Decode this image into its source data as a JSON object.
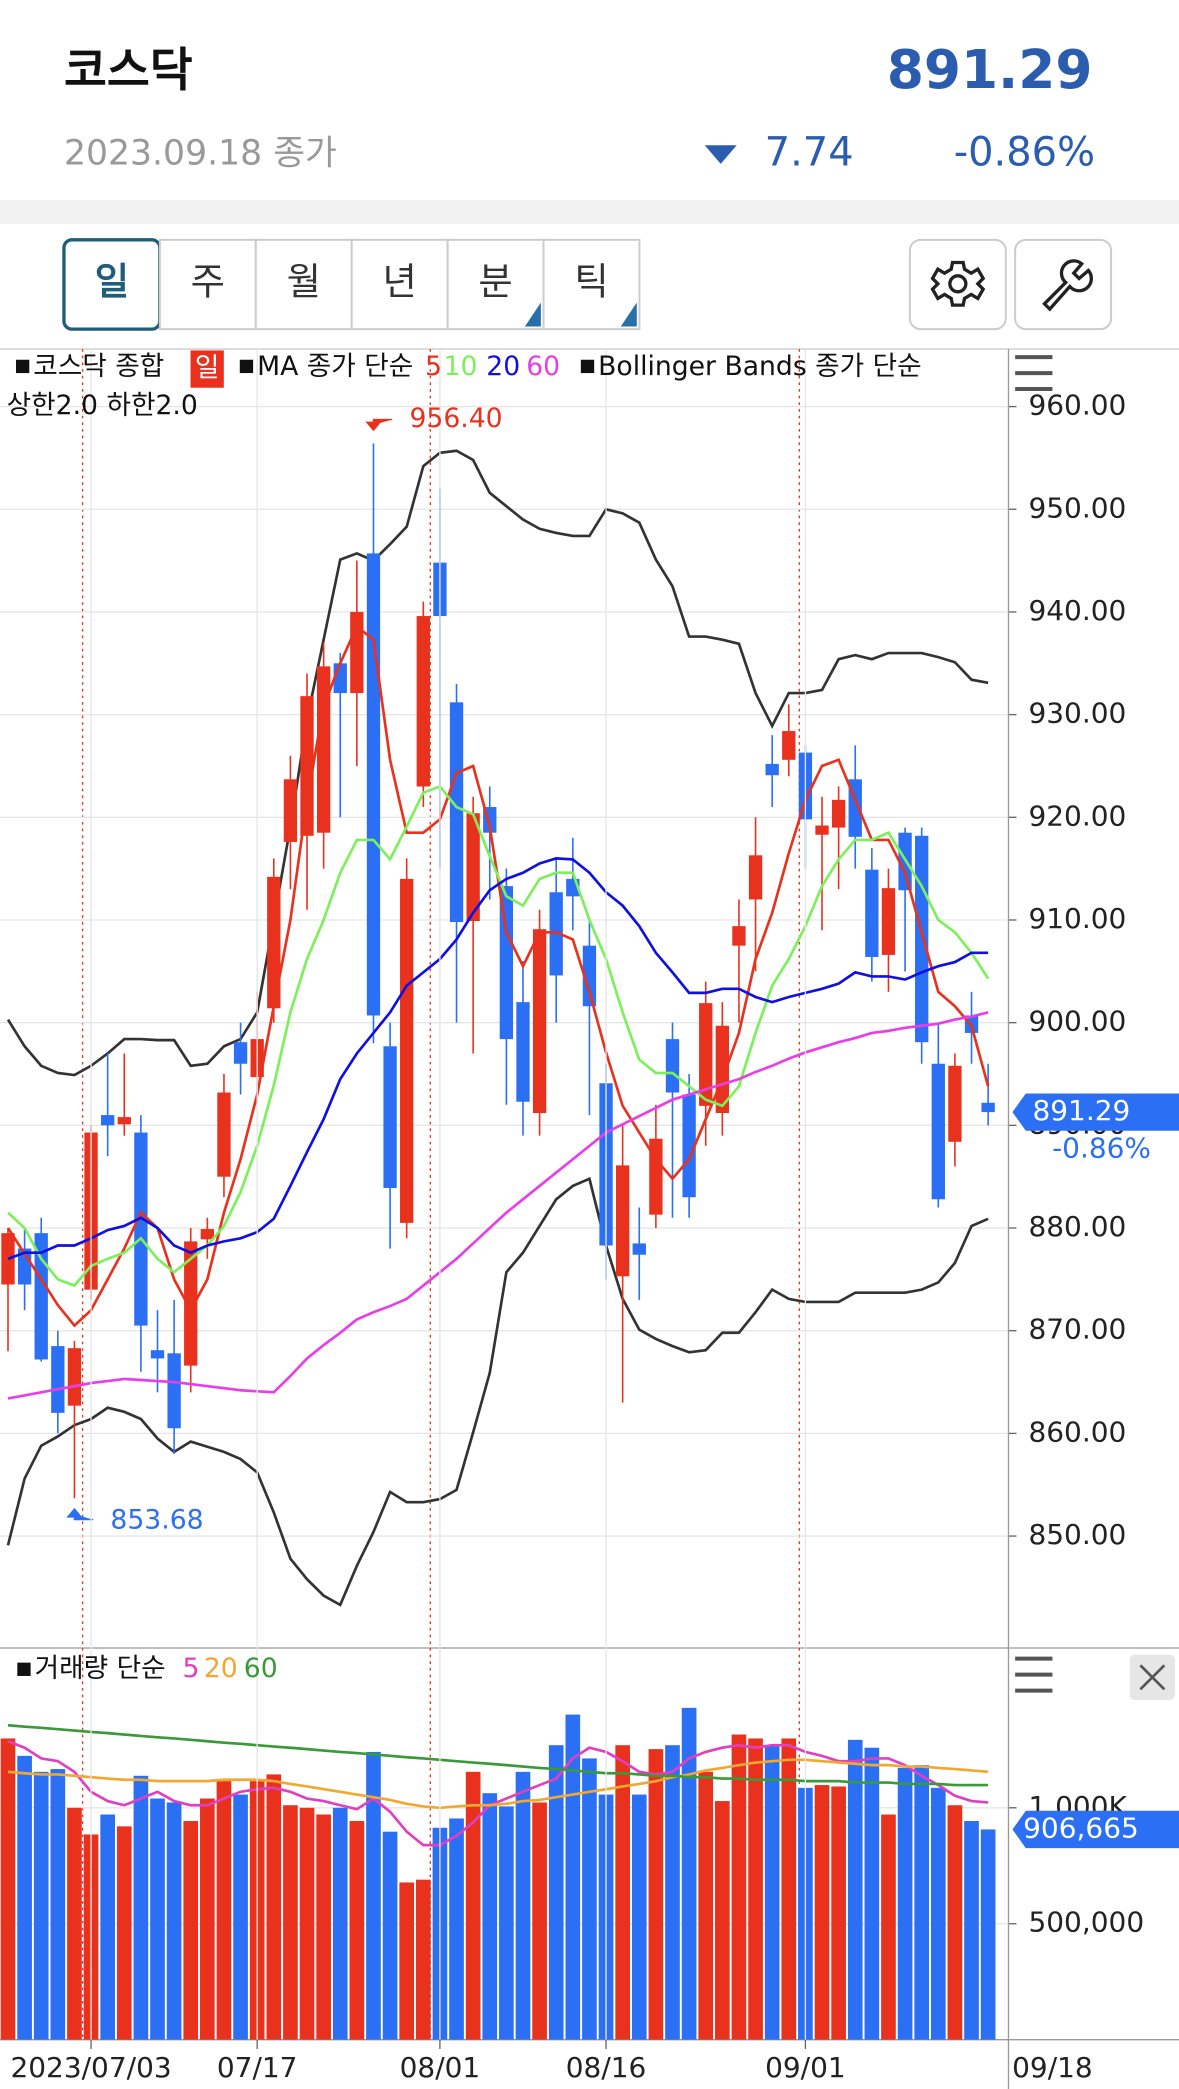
{
  "header": {
    "name": "코스닥",
    "price": "891.29",
    "date": "2023.09.18 종가",
    "change": "7.74",
    "change_pct": "-0.86%"
  },
  "tabs": [
    "일",
    "주",
    "월",
    "년",
    "분",
    "틱"
  ],
  "chart_data": [
    {
      "type": "candlestick",
      "legend": {
        "main": "코스닥 종합",
        "period": "일",
        "ma_title": "MA 종가 단순",
        "bb_title": "Bollinger Bands 종가 단순",
        "bb_params": "상한2.0 하한2.0"
      },
      "up_color": "#e8321e",
      "down_color": "#2b6ff5",
      "open": [
        874.5,
        878,
        879.5,
        868.5,
        862.7,
        874,
        891,
        890.1,
        889.3,
        868.1,
        867.8,
        866.6,
        878.9,
        885,
        898.1,
        894.7,
        901.4,
        917.6,
        918.2,
        918.5,
        935,
        932.1,
        945.7,
        897.7,
        880.5,
        923,
        944.8,
        931.2,
        909.9,
        921,
        913.3,
        902,
        891.2,
        912.7,
        914,
        907.5,
        894.1,
        875.3,
        878.5,
        881.3,
        898.4,
        893,
        891.9,
        891.2,
        907.5,
        912,
        925.2,
        925.6,
        926.3,
        918.3,
        919,
        923.7,
        914.9,
        906.6,
        918.5,
        918.2,
        896,
        888.4,
        900.7,
        892.2
      ],
      "high": [
        880,
        880,
        881,
        870,
        869,
        890,
        897,
        897,
        891,
        872,
        873,
        880,
        881,
        895,
        900,
        903,
        916,
        926,
        934,
        937,
        936,
        945,
        956.4,
        900,
        916,
        941,
        952,
        933,
        922,
        923,
        915,
        906,
        911,
        916,
        918,
        910,
        896,
        890,
        882,
        892,
        900,
        895,
        904,
        902,
        912,
        920,
        928,
        931,
        927,
        922,
        923,
        927,
        917,
        915,
        919,
        919,
        900,
        897,
        903,
        896
      ],
      "low": [
        868,
        872,
        867,
        860,
        853.68,
        873,
        887,
        889,
        866,
        864,
        858,
        864,
        877,
        883,
        893,
        893,
        900,
        913,
        911,
        915,
        920,
        925,
        898,
        878,
        879,
        921,
        915,
        900,
        897,
        912,
        892,
        889,
        889,
        900,
        909,
        891,
        875,
        863,
        873,
        880,
        881,
        881,
        888,
        889,
        900,
        905,
        921,
        924,
        915,
        909,
        913,
        915,
        904,
        903,
        905,
        896,
        882,
        886,
        896,
        890
      ],
      "close": [
        879.5,
        874.5,
        867.2,
        862,
        868.3,
        889.3,
        890,
        890.8,
        870.5,
        867.3,
        860.5,
        878.7,
        879.9,
        893.2,
        896,
        898.4,
        914.2,
        923.7,
        931.8,
        934.7,
        932.1,
        940,
        900.7,
        883.9,
        914,
        939.6,
        939.6,
        909.8,
        920.4,
        918.5,
        898.4,
        892.3,
        909.1,
        904.6,
        912.3,
        901.6,
        878.3,
        886.1,
        877.4,
        888.7,
        893.2,
        883,
        901.9,
        899.7,
        909.4,
        916.3,
        924.1,
        928.4,
        919.8,
        919.2,
        921.7,
        918.1,
        906.4,
        913.1,
        912.9,
        898.1,
        882.8,
        895.8,
        899,
        891.29
      ],
      "series": [
        {
          "name": "5",
          "color": "#e8321e",
          "values": [
            880,
            877.5,
            875,
            872.5,
            870.5,
            872,
            875,
            878,
            881.5,
            880,
            875,
            872,
            875,
            881.5,
            886.7,
            893,
            901.6,
            910,
            921.7,
            930.8,
            935,
            938.6,
            937.3,
            925.6,
            918.5,
            918.5,
            919.8,
            924.3,
            925,
            919.1,
            908.8,
            905.5,
            908.8,
            908.8,
            908.1,
            903,
            897.1,
            891.9,
            889.3,
            886.7,
            884.8,
            886.7,
            890.6,
            894.5,
            899,
            906.2,
            910.7,
            916.5,
            921.7,
            925,
            925.6,
            921.7,
            917.8,
            917.8,
            914.6,
            908.8,
            903,
            901.6,
            899.7,
            893.8
          ]
        },
        {
          "name": "10",
          "color": "#7cf05a",
          "values": [
            881.5,
            880,
            877,
            875,
            874.4,
            876.3,
            877,
            877.6,
            879,
            877,
            875.7,
            877,
            878.3,
            880.2,
            883.5,
            888,
            893.9,
            901,
            906.2,
            910,
            914.6,
            917.8,
            917.8,
            915.9,
            919.1,
            922.4,
            923,
            921,
            920.3,
            916.2,
            912.3,
            911.4,
            914,
            914.6,
            914.6,
            910,
            906.2,
            901,
            896.4,
            895.1,
            895.1,
            893.8,
            892.5,
            891.9,
            893.8,
            899,
            903.6,
            906.2,
            909.4,
            913.3,
            915.9,
            917.8,
            917.8,
            918.5,
            915.9,
            913.3,
            910,
            908.8,
            906.8,
            904.3
          ]
        },
        {
          "name": "20",
          "color": "#1010e0",
          "values": [
            877,
            877.6,
            877.6,
            878.3,
            878.3,
            879,
            879.8,
            880.2,
            881,
            880,
            878.3,
            877.6,
            878.3,
            878.7,
            879,
            879.6,
            880.9,
            884.1,
            887.4,
            890.6,
            894.5,
            897,
            899,
            901,
            903.6,
            904.9,
            906.2,
            908.1,
            910.7,
            912.9,
            914,
            914.6,
            915.5,
            916,
            915.9,
            914.6,
            912.7,
            911.4,
            909.4,
            906.8,
            904.9,
            902.9,
            902.9,
            903.3,
            903.3,
            902.5,
            902,
            902.5,
            902.9,
            903.3,
            903.8,
            904.9,
            904.5,
            904.5,
            904.2,
            904.9,
            905.5,
            905.9,
            906.8,
            906.8
          ]
        },
        {
          "name": "60",
          "color": "#e83ee8",
          "values": [
            863.4,
            863.7,
            864.0,
            864.3,
            864.6,
            864.9,
            865.1,
            865.3,
            865.2,
            865.1,
            865.0,
            864.8,
            864.6,
            864.4,
            864.2,
            864.1,
            864.0,
            865.6,
            867.3,
            868.6,
            869.8,
            871.1,
            871.8,
            872.4,
            873.1,
            874.4,
            875.7,
            877.0,
            878.5,
            880.0,
            881.5,
            882.8,
            884.1,
            885.4,
            886.7,
            888.0,
            889.3,
            890.1,
            890.9,
            891.7,
            892.5,
            893.0,
            893.5,
            894.0,
            894.5,
            895.2,
            895.8,
            896.5,
            897.1,
            897.6,
            898.1,
            898.5,
            899.0,
            899.2,
            899.5,
            899.7,
            899.9,
            900.3,
            900.6,
            901.0
          ]
        }
      ],
      "bands": {
        "color": "#333333",
        "upper": [
          900.3,
          897.7,
          895.8,
          895.1,
          894.9,
          895.8,
          897,
          898.4,
          898.4,
          898.3,
          898.3,
          895.8,
          896,
          897.7,
          898.4,
          901,
          910,
          919.1,
          929.5,
          937.3,
          945.1,
          945.7,
          945,
          946.6,
          948.3,
          954.2,
          955.5,
          955.7,
          954.8,
          951.6,
          950.3,
          949,
          948.1,
          947.7,
          947.4,
          947.4,
          950,
          949.6,
          948.7,
          945.1,
          942.5,
          937.6,
          937.6,
          937.3,
          936.9,
          932.1,
          928.9,
          932.1,
          932.1,
          932.4,
          935.4,
          935.8,
          935.4,
          936,
          936,
          936,
          935.6,
          935.1,
          933.4,
          933.1
        ],
        "lower": [
          849.1,
          855.6,
          858.8,
          859.7,
          860.8,
          861.4,
          862.5,
          862.1,
          861.4,
          859.5,
          858.2,
          859.2,
          858.7,
          858.2,
          857.5,
          856.2,
          852.3,
          847.8,
          845.8,
          844.2,
          843.3,
          847.1,
          850.4,
          854.3,
          853.3,
          853.3,
          853.6,
          854.5,
          860.1,
          865.9,
          875.7,
          877.6,
          880.2,
          882.8,
          884.1,
          884.8,
          878.3,
          873.1,
          870.1,
          869.2,
          868.5,
          867.9,
          868.1,
          869.8,
          869.8,
          871.8,
          874,
          873.1,
          872.8,
          872.8,
          872.8,
          873.7,
          873.7,
          873.7,
          873.7,
          874,
          874.7,
          876.6,
          880.2,
          880.9
        ]
      },
      "high_label": "956.40",
      "low_label": "853.68",
      "last_label": "891.29",
      "last_change": "-0.86%",
      "ylim": [
        839.1,
        965.6
      ],
      "yticks": [
        {
          "value": 850,
          "label": "850.00"
        },
        {
          "value": 860,
          "label": "860.00"
        },
        {
          "value": 870,
          "label": "870.00"
        },
        {
          "value": 880,
          "label": "880.00"
        },
        {
          "value": 890,
          "label": "890.00"
        },
        {
          "value": 900,
          "label": "900.00"
        },
        {
          "value": 910,
          "label": "910.00"
        },
        {
          "value": 920,
          "label": "920.00"
        },
        {
          "value": 930,
          "label": "930.00"
        },
        {
          "value": 940,
          "label": "940.00"
        },
        {
          "value": 950,
          "label": "950.00"
        },
        {
          "value": 960,
          "label": "960.00"
        }
      ],
      "grid": true
    },
    {
      "type": "bar",
      "title": "거래량 단순",
      "categories": [
        null,
        null,
        null,
        null,
        null,
        "2023/07/03",
        null,
        null,
        null,
        null,
        null,
        null,
        null,
        null,
        null,
        "07/17",
        null,
        null,
        null,
        null,
        null,
        null,
        null,
        null,
        null,
        null,
        "08/01",
        null,
        null,
        null,
        null,
        null,
        null,
        null,
        null,
        null,
        "08/16",
        null,
        null,
        null,
        null,
        null,
        null,
        null,
        null,
        null,
        null,
        null,
        "09/01",
        null,
        null,
        null,
        null,
        null,
        null,
        null,
        null,
        null,
        null,
        null
      ],
      "values": [
        1299000,
        1224000,
        1155000,
        1167000,
        1000000,
        885000,
        971000,
        920000,
        1138000,
        1040000,
        1023000,
        943000,
        1040000,
        1115000,
        1057000,
        1115000,
        1144000,
        1011000,
        1000000,
        971000,
        1000000,
        943000,
        1241000,
        897000,
        678000,
        690000,
        914000,
        954000,
        1155000,
        1063000,
        1006000,
        1155000,
        1023000,
        1270000,
        1402000,
        1213000,
        1057000,
        1270000,
        1057000,
        1253000,
        1270000,
        1431000,
        1155000,
        1029000,
        1316000,
        1299000,
        1270000,
        1299000,
        1086000,
        1098000,
        1092000,
        1293000,
        1259000,
        971000,
        1172000,
        1184000,
        1086000,
        1011000,
        943000,
        906665
      ],
      "series": [
        {
          "name": "5",
          "color": "#e040c0",
          "values": [
            1287000,
            1259000,
            1213000,
            1201000,
            1155000,
            1069000,
            1029000,
            1011000,
            1040000,
            1069000,
            1029000,
            1011000,
            1011000,
            1040000,
            1069000,
            1080000,
            1086000,
            1069000,
            1040000,
            1029000,
            1011000,
            994000,
            1040000,
            983000,
            897000,
            839000,
            839000,
            879000,
            937000,
            1011000,
            1040000,
            1069000,
            1098000,
            1126000,
            1213000,
            1259000,
            1241000,
            1201000,
            1155000,
            1144000,
            1155000,
            1213000,
            1241000,
            1259000,
            1270000,
            1259000,
            1270000,
            1270000,
            1241000,
            1224000,
            1201000,
            1201000,
            1213000,
            1213000,
            1184000,
            1138000,
            1098000,
            1052000,
            1029000,
            1023000
          ]
        },
        {
          "name": "20",
          "color": "#f0a830",
          "values": [
            1155000,
            1149000,
            1144000,
            1144000,
            1138000,
            1132000,
            1126000,
            1121000,
            1121000,
            1115000,
            1115000,
            1115000,
            1115000,
            1121000,
            1121000,
            1121000,
            1115000,
            1103000,
            1092000,
            1080000,
            1069000,
            1057000,
            1046000,
            1034000,
            1017000,
            1006000,
            1000000,
            1006000,
            1011000,
            1011000,
            1017000,
            1029000,
            1034000,
            1046000,
            1057000,
            1069000,
            1080000,
            1092000,
            1103000,
            1115000,
            1132000,
            1144000,
            1161000,
            1172000,
            1184000,
            1195000,
            1201000,
            1207000,
            1207000,
            1201000,
            1195000,
            1190000,
            1184000,
            1184000,
            1178000,
            1178000,
            1172000,
            1167000,
            1161000,
            1155000
          ]
        },
        {
          "name": "60",
          "color": "#3a9a3a",
          "values": [
            1356000,
            1350000,
            1345000,
            1339000,
            1333000,
            1327000,
            1322000,
            1316000,
            1310000,
            1304000,
            1299000,
            1293000,
            1287000,
            1281000,
            1276000,
            1270000,
            1264000,
            1259000,
            1253000,
            1247000,
            1241000,
            1236000,
            1230000,
            1224000,
            1218000,
            1213000,
            1207000,
            1201000,
            1195000,
            1190000,
            1184000,
            1178000,
            1172000,
            1167000,
            1161000,
            1155000,
            1149000,
            1149000,
            1144000,
            1138000,
            1138000,
            1132000,
            1132000,
            1126000,
            1126000,
            1121000,
            1121000,
            1121000,
            1115000,
            1115000,
            1115000,
            1109000,
            1109000,
            1109000,
            1103000,
            1103000,
            1103000,
            1098000,
            1098000,
            1098000
          ]
        }
      ],
      "last_label": "906,665",
      "last_date": "09/18",
      "ylim": [
        0,
        1672000
      ],
      "yticks": [
        {
          "value": 500000,
          "label": "500,000"
        },
        {
          "value": 1000000,
          "label": "1,000K"
        }
      ],
      "grid": true
    }
  ]
}
